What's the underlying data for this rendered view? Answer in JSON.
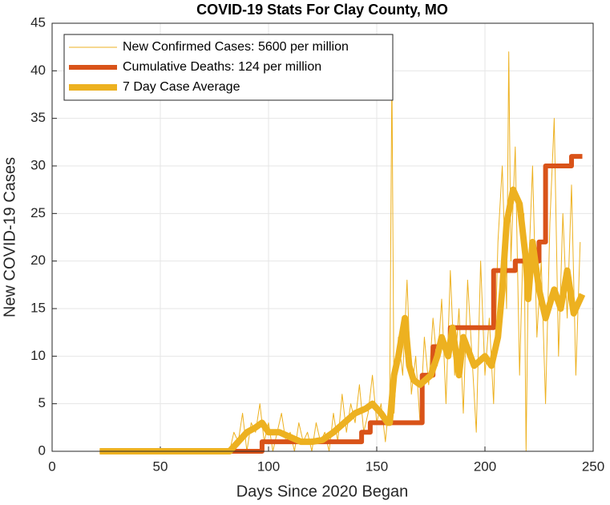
{
  "chart_data": {
    "type": "line",
    "title": "COVID-19 Stats For Clay County, MO",
    "xlabel": "Days Since 2020 Began",
    "ylabel": "New COVID-19 Cases",
    "xlim": [
      0,
      250
    ],
    "xticks": [
      0,
      50,
      100,
      150,
      200,
      250
    ],
    "ylim": [
      0,
      45
    ],
    "yticks": [
      0,
      5,
      10,
      15,
      20,
      25,
      30,
      35,
      40,
      45
    ],
    "grid": true,
    "legend": "upper left",
    "series": [
      {
        "name": "New Confirmed Cases: 5600 per million",
        "color": "#EDB120",
        "x": [
          22,
          82,
          84,
          86,
          88,
          90,
          92,
          94,
          96,
          98,
          100,
          102,
          104,
          106,
          108,
          110,
          112,
          114,
          116,
          118,
          120,
          122,
          124,
          126,
          128,
          130,
          132,
          134,
          136,
          138,
          140,
          142,
          144,
          146,
          148,
          150,
          152,
          154,
          156,
          157,
          158,
          160,
          162,
          164,
          166,
          168,
          170,
          172,
          174,
          176,
          178,
          180,
          182,
          184,
          186,
          188,
          190,
          192,
          194,
          196,
          198,
          200,
          202,
          204,
          206,
          208,
          210,
          211,
          212,
          214,
          216,
          218,
          219,
          220,
          222,
          224,
          226,
          228,
          230,
          232,
          234,
          236,
          238,
          240,
          242,
          244
        ],
        "values": [
          0,
          0,
          2,
          1,
          4,
          0,
          3,
          2,
          5,
          1,
          3,
          0,
          2,
          4,
          1,
          2,
          0,
          3,
          1,
          2,
          0,
          3,
          1,
          2,
          0,
          4,
          1,
          6,
          2,
          5,
          3,
          7,
          2,
          4,
          8,
          3,
          5,
          1,
          6,
          40,
          4,
          12,
          8,
          18,
          6,
          10,
          3,
          12,
          7,
          14,
          9,
          16,
          5,
          19,
          8,
          15,
          4,
          18,
          10,
          2,
          20,
          8,
          14,
          5,
          22,
          30,
          15,
          42,
          20,
          32,
          8,
          25,
          0,
          18,
          30,
          12,
          20,
          5,
          24,
          35,
          10,
          25,
          14,
          28,
          8,
          22
        ]
      },
      {
        "name": "Cumulative Deaths: 124 per million",
        "color": "#D95319",
        "x": [
          22,
          97,
          97,
          143,
          143,
          147,
          147,
          171,
          171,
          176,
          176,
          184,
          184,
          204,
          204,
          214,
          214,
          225,
          225,
          228,
          228,
          240,
          240,
          245
        ],
        "values": [
          0,
          0,
          1,
          1,
          2,
          2,
          3,
          3,
          8,
          8,
          11,
          11,
          13,
          13,
          19,
          19,
          20,
          20,
          22,
          22,
          30,
          30,
          31,
          31
        ]
      },
      {
        "name": "7 Day Case Average",
        "color": "#EDB120",
        "x": [
          22,
          82,
          86,
          90,
          94,
          97,
          100,
          105,
          110,
          115,
          120,
          125,
          130,
          135,
          140,
          145,
          148,
          152,
          155,
          156,
          158,
          160,
          163,
          165,
          167,
          170,
          175,
          178,
          180,
          183,
          185,
          188,
          190,
          195,
          200,
          203,
          206,
          208,
          210,
          213,
          216,
          219,
          220,
          222,
          225,
          228,
          232,
          235,
          238,
          241,
          245
        ],
        "values": [
          0,
          0,
          1,
          2,
          2.5,
          3,
          2,
          2,
          1.5,
          1,
          1,
          1.2,
          2,
          3,
          4,
          4.5,
          5,
          4,
          3,
          3,
          8,
          10,
          14,
          9,
          7.5,
          7,
          8,
          10,
          12,
          10,
          13,
          8,
          12,
          9,
          10,
          9,
          12,
          17,
          24,
          27.5,
          26,
          20,
          16,
          22,
          17,
          14,
          17,
          15,
          19,
          14.5,
          16.5
        ]
      }
    ]
  }
}
